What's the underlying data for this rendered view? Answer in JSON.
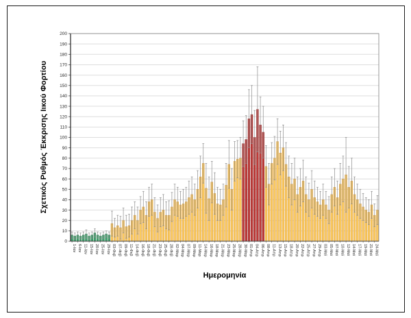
{
  "figure": {
    "background": "#ffffff",
    "border_color": "#1a1a1a"
  },
  "chart_data": {
    "type": "bar",
    "title": "",
    "ylabel": "Σχετικός Ρυθμός Έκκρισης Ιικού Φορτίου",
    "xlabel": "Ημερομηνία",
    "ylim": [
      0,
      200
    ],
    "ytick_step": 10,
    "ytick_values": [
      0,
      10,
      20,
      30,
      40,
      50,
      60,
      70,
      80,
      90,
      100,
      110,
      120,
      130,
      140,
      150,
      160,
      170,
      180,
      190,
      200
    ],
    "grid": true,
    "gridline_color": "#dedede",
    "axis_color": "#404040",
    "plot_border_color": "#7f7f7f",
    "error_bar_color": "#8c8c8c",
    "x_tick_label_every_n_bars": 2,
    "x_tick_labels": [
      "1-Ιαν",
      "6-Ιαν",
      "11-Ιαν",
      "15-Ιαν",
      "20-Ιαν",
      "25-Ιαν",
      "29-Ιαν",
      "03-Φεβ",
      "07-Φεβ",
      "09-Φεβ",
      "11-Φεβ",
      "14-Φεβ",
      "16-Φεβ",
      "18-Φεβ",
      "21-Φεβ",
      "23-Φεβ",
      "25-Φεβ",
      "28-Φεβ",
      "02-Μαρ",
      "04-Μαρ",
      "07-Μαρ",
      "09-Μαρ",
      "11-Μαρ",
      "14-Μαρ",
      "16-Μαρ",
      "18-Μαρ",
      "21-Μαρ",
      "23-Μαρ",
      "25-Μαρ",
      "28-Μαρ",
      "30-Μαρ",
      "01-Απρ",
      "04-Απρ",
      "06-Απρ",
      "08-Απρ",
      "11-Απρ",
      "13-Απρ",
      "15-Απρ",
      "18-Απρ",
      "20-Απρ",
      "22-Απρ",
      "25-Απρ",
      "27-Απρ",
      "29-Απρ",
      "03-Μαϊ",
      "05-Μαϊ",
      "07-Μαϊ",
      "10-Μαϊ",
      "12-Μαϊ",
      "14-Μαϊ",
      "17-Μαϊ",
      "19-Μαϊ",
      "21-Μαϊ",
      "24-Μαϊ"
    ],
    "bars": {
      "values": [
        6,
        5,
        6,
        5,
        6,
        7,
        5,
        6,
        8,
        6,
        5,
        6,
        7,
        6,
        17,
        13,
        15,
        13,
        20,
        14,
        15,
        20,
        25,
        20,
        30,
        33,
        25,
        38,
        40,
        28,
        22,
        28,
        30,
        25,
        25,
        33,
        40,
        38,
        35,
        36,
        38,
        42,
        45,
        40,
        50,
        62,
        75,
        51,
        41,
        57,
        46,
        36,
        35,
        40,
        54,
        74,
        50,
        77,
        79,
        80,
        94,
        98,
        118,
        122,
        100,
        127,
        112,
        105,
        72,
        55,
        75,
        80,
        96,
        85,
        90,
        74,
        62,
        55,
        60,
        45,
        52,
        58,
        45,
        40,
        50,
        42,
        38,
        35,
        40,
        35,
        30,
        45,
        52,
        42,
        55,
        60,
        64,
        52,
        58,
        45,
        40,
        36,
        33,
        30,
        28,
        35,
        25,
        30
      ],
      "error_high": [
        9,
        8,
        9,
        8,
        9,
        11,
        8,
        9,
        12,
        9,
        8,
        9,
        10,
        9,
        29,
        22,
        25,
        24,
        32,
        25,
        26,
        33,
        38,
        33,
        43,
        48,
        38,
        52,
        55,
        42,
        35,
        42,
        45,
        38,
        39,
        47,
        55,
        52,
        48,
        50,
        52,
        58,
        62,
        55,
        68,
        82,
        94,
        75,
        62,
        77,
        66,
        52,
        50,
        55,
        75,
        97,
        70,
        96,
        97,
        100,
        116,
        121,
        146,
        150,
        126,
        168,
        139,
        130,
        92,
        75,
        95,
        101,
        118,
        106,
        112,
        95,
        82,
        75,
        80,
        62,
        70,
        78,
        62,
        56,
        68,
        58,
        52,
        48,
        55,
        48,
        43,
        62,
        70,
        58,
        75,
        82,
        100,
        72,
        80,
        62,
        55,
        50,
        46,
        42,
        40,
        48,
        36,
        44
      ]
    },
    "color_segments": [
      {
        "color": "green",
        "from": 0,
        "to": 13
      },
      {
        "color": "yellow",
        "from": 14,
        "to": 59
      },
      {
        "color": "red",
        "from": 60,
        "to": 67
      },
      {
        "color": "yellow",
        "from": 68,
        "to": 107
      }
    ],
    "palette": {
      "green": {
        "fill": "#3fa56e",
        "stroke": "#2b7a4f"
      },
      "yellow": {
        "fill": "#fbca5e",
        "stroke": "#d9993b"
      },
      "red": {
        "fill": "#bf3a38",
        "stroke": "#8c2724"
      }
    },
    "legend": null
  }
}
